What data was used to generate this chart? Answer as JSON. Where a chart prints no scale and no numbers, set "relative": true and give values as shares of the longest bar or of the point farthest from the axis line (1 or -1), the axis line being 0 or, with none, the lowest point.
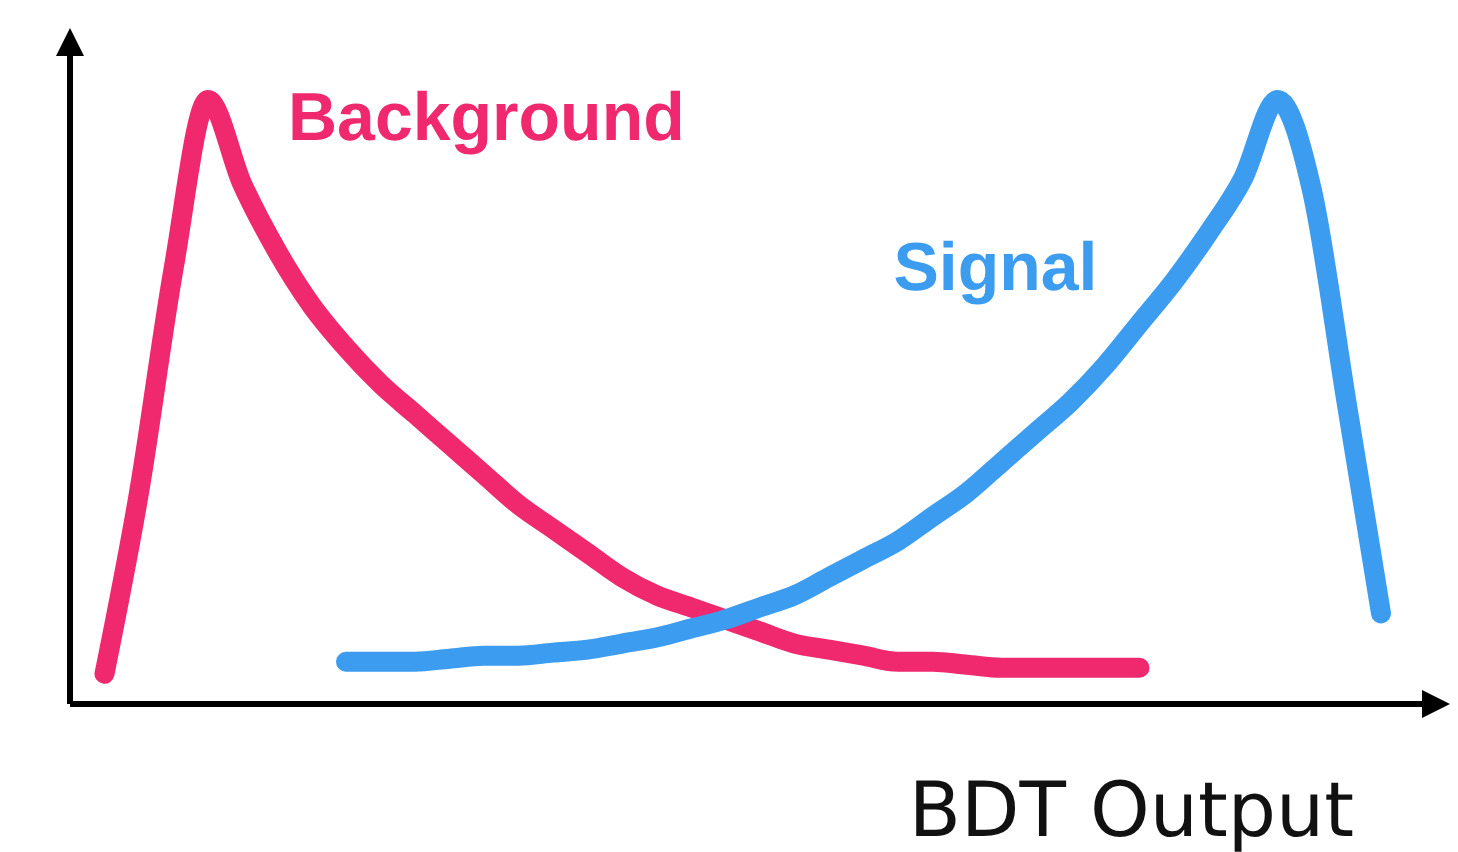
{
  "chart_data": {
    "type": "line",
    "relative": true,
    "xlabel": "BDT Output",
    "legend": false,
    "line_style": "solid",
    "categories": [
      null,
      null,
      null,
      null,
      null,
      null,
      null,
      null,
      null,
      null,
      null,
      null,
      null,
      null,
      null,
      null,
      null,
      null,
      null,
      null,
      null,
      null,
      null,
      null,
      null,
      null,
      null,
      null,
      null,
      null,
      null,
      null,
      null,
      null,
      null,
      null,
      null,
      null,
      null,
      null,
      null
    ],
    "series": [
      {
        "name": "Background",
        "color": "#f0286e",
        "values": [
          null,
          0.05,
          0.35,
          0.72,
          1,
          0.86,
          0.75,
          0.66,
          0.59,
          0.53,
          0.48,
          0.43,
          0.38,
          0.33,
          0.29,
          0.25,
          0.21,
          0.18,
          0.16,
          0.14,
          0.12,
          0.1,
          0.09,
          0.08,
          0.07,
          0.07,
          0.065,
          0.06,
          0.06,
          0.06,
          0.06,
          0.06,
          null,
          null,
          null,
          null,
          null,
          null,
          null,
          null,
          null
        ]
      },
      {
        "name": "Signal",
        "color": "#3b9cf0",
        "values": [
          null,
          null,
          null,
          null,
          null,
          null,
          null,
          null,
          0.07,
          0.07,
          0.07,
          0.075,
          0.08,
          0.08,
          0.085,
          0.09,
          0.1,
          0.11,
          0.125,
          0.14,
          0.16,
          0.18,
          0.21,
          0.24,
          0.27,
          0.31,
          0.35,
          0.4,
          0.45,
          0.5,
          0.56,
          0.63,
          0.7,
          0.78,
          0.87,
          1,
          0.85,
          0.5,
          0.15,
          null,
          null
        ]
      }
    ]
  }
}
